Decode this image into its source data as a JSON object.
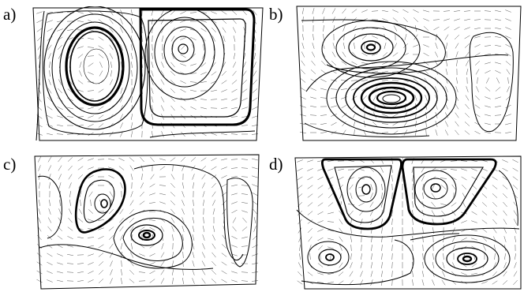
{
  "panels": [
    {
      "id": "a",
      "label": "a)"
    },
    {
      "id": "b",
      "label": "b)"
    },
    {
      "id": "c",
      "label": "c)"
    },
    {
      "id": "d",
      "label": "d)"
    }
  ]
}
